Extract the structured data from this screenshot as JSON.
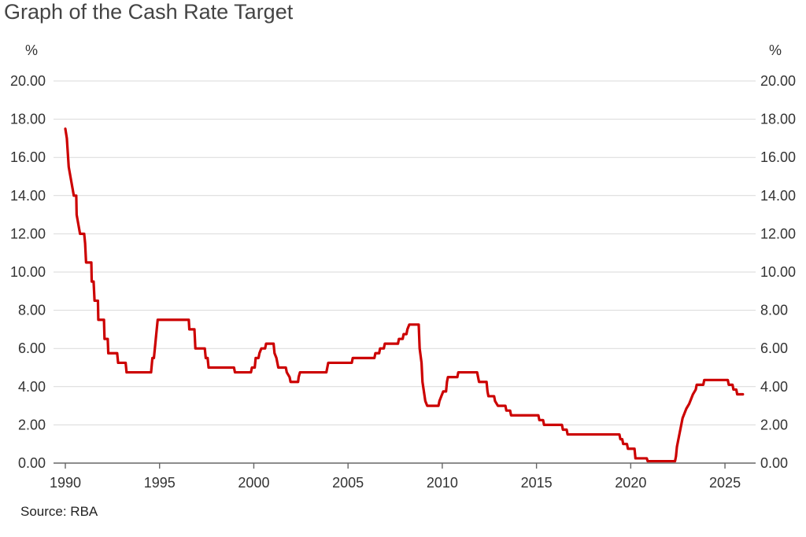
{
  "title": "Graph of the Cash Rate Target",
  "source": "Source: RBA",
  "chart_data": {
    "type": "line",
    "title": "Graph of the Cash Rate Target",
    "xlabel": "",
    "ylabel": "%",
    "y_unit_left": "%",
    "y_unit_right": "%",
    "xlim": [
      1990,
      2026
    ],
    "ylim": [
      0,
      20
    ],
    "x_ticks": [
      1990,
      1995,
      2000,
      2005,
      2010,
      2015,
      2020,
      2025
    ],
    "x_tick_labels": [
      "1990",
      "1995",
      "2000",
      "2005",
      "2010",
      "2015",
      "2020",
      "2025"
    ],
    "y_ticks": [
      0,
      2,
      4,
      6,
      8,
      10,
      12,
      14,
      16,
      18,
      20
    ],
    "y_tick_labels": [
      "0.00",
      "2.00",
      "4.00",
      "6.00",
      "8.00",
      "10.00",
      "12.00",
      "14.00",
      "16.00",
      "18.00",
      "20.00"
    ],
    "grid": "horizontal",
    "line_color": "#cc0000",
    "series": [
      {
        "values": [
          [
            1990.0,
            17.5
          ],
          [
            1990.08,
            17.0
          ],
          [
            1990.18,
            15.5
          ],
          [
            1990.45,
            14.0
          ],
          [
            1990.58,
            14.0
          ],
          [
            1990.6,
            13.0
          ],
          [
            1990.78,
            12.0
          ],
          [
            1991.0,
            12.0
          ],
          [
            1991.05,
            11.5
          ],
          [
            1991.1,
            10.5
          ],
          [
            1991.38,
            10.5
          ],
          [
            1991.4,
            9.5
          ],
          [
            1991.5,
            9.5
          ],
          [
            1991.55,
            8.5
          ],
          [
            1991.73,
            8.5
          ],
          [
            1991.75,
            7.5
          ],
          [
            1992.05,
            7.5
          ],
          [
            1992.08,
            6.5
          ],
          [
            1992.25,
            6.5
          ],
          [
            1992.28,
            5.75
          ],
          [
            1992.75,
            5.75
          ],
          [
            1992.8,
            5.25
          ],
          [
            1993.2,
            5.25
          ],
          [
            1993.25,
            4.75
          ],
          [
            1994.55,
            4.75
          ],
          [
            1994.62,
            5.5
          ],
          [
            1994.7,
            5.5
          ],
          [
            1994.8,
            6.5
          ],
          [
            1994.9,
            7.5
          ],
          [
            1996.55,
            7.5
          ],
          [
            1996.58,
            7.0
          ],
          [
            1996.85,
            7.0
          ],
          [
            1996.9,
            6.0
          ],
          [
            1997.4,
            6.0
          ],
          [
            1997.45,
            5.5
          ],
          [
            1997.55,
            5.5
          ],
          [
            1997.6,
            5.0
          ],
          [
            1998.95,
            5.0
          ],
          [
            1999.0,
            4.75
          ],
          [
            1999.85,
            4.75
          ],
          [
            1999.9,
            5.0
          ],
          [
            2000.05,
            5.0
          ],
          [
            2000.1,
            5.5
          ],
          [
            2000.25,
            5.5
          ],
          [
            2000.3,
            5.75
          ],
          [
            2000.4,
            6.0
          ],
          [
            2000.6,
            6.0
          ],
          [
            2000.65,
            6.25
          ],
          [
            2001.05,
            6.25
          ],
          [
            2001.1,
            5.75
          ],
          [
            2001.2,
            5.5
          ],
          [
            2001.3,
            5.0
          ],
          [
            2001.7,
            5.0
          ],
          [
            2001.75,
            4.75
          ],
          [
            2001.9,
            4.5
          ],
          [
            2001.95,
            4.25
          ],
          [
            2002.35,
            4.25
          ],
          [
            2002.38,
            4.5
          ],
          [
            2002.45,
            4.75
          ],
          [
            2003.85,
            4.75
          ],
          [
            2003.9,
            5.0
          ],
          [
            2003.95,
            5.25
          ],
          [
            2005.2,
            5.25
          ],
          [
            2005.25,
            5.5
          ],
          [
            2006.4,
            5.5
          ],
          [
            2006.45,
            5.75
          ],
          [
            2006.65,
            5.75
          ],
          [
            2006.7,
            6.0
          ],
          [
            2006.9,
            6.0
          ],
          [
            2006.95,
            6.25
          ],
          [
            2007.65,
            6.25
          ],
          [
            2007.7,
            6.5
          ],
          [
            2007.9,
            6.5
          ],
          [
            2007.95,
            6.75
          ],
          [
            2008.1,
            6.75
          ],
          [
            2008.15,
            7.0
          ],
          [
            2008.25,
            7.25
          ],
          [
            2008.75,
            7.25
          ],
          [
            2008.8,
            6.0
          ],
          [
            2008.9,
            5.25
          ],
          [
            2008.95,
            4.25
          ],
          [
            2009.1,
            3.25
          ],
          [
            2009.2,
            3.0
          ],
          [
            2009.8,
            3.0
          ],
          [
            2009.85,
            3.25
          ],
          [
            2009.95,
            3.5
          ],
          [
            2010.05,
            3.75
          ],
          [
            2010.2,
            3.75
          ],
          [
            2010.25,
            4.25
          ],
          [
            2010.3,
            4.5
          ],
          [
            2010.8,
            4.5
          ],
          [
            2010.85,
            4.75
          ],
          [
            2011.85,
            4.75
          ],
          [
            2011.9,
            4.5
          ],
          [
            2011.95,
            4.25
          ],
          [
            2012.35,
            4.25
          ],
          [
            2012.4,
            3.75
          ],
          [
            2012.45,
            3.5
          ],
          [
            2012.75,
            3.5
          ],
          [
            2012.8,
            3.25
          ],
          [
            2012.95,
            3.0
          ],
          [
            2013.35,
            3.0
          ],
          [
            2013.4,
            2.75
          ],
          [
            2013.6,
            2.75
          ],
          [
            2013.65,
            2.5
          ],
          [
            2015.1,
            2.5
          ],
          [
            2015.15,
            2.25
          ],
          [
            2015.35,
            2.25
          ],
          [
            2015.4,
            2.0
          ],
          [
            2016.35,
            2.0
          ],
          [
            2016.4,
            1.75
          ],
          [
            2016.6,
            1.75
          ],
          [
            2016.65,
            1.5
          ],
          [
            2019.4,
            1.5
          ],
          [
            2019.45,
            1.25
          ],
          [
            2019.55,
            1.25
          ],
          [
            2019.6,
            1.0
          ],
          [
            2019.8,
            1.0
          ],
          [
            2019.85,
            0.75
          ],
          [
            2020.2,
            0.75
          ],
          [
            2020.25,
            0.25
          ],
          [
            2020.85,
            0.25
          ],
          [
            2020.9,
            0.1
          ],
          [
            2022.35,
            0.1
          ],
          [
            2022.4,
            0.35
          ],
          [
            2022.45,
            0.85
          ],
          [
            2022.55,
            1.35
          ],
          [
            2022.65,
            1.85
          ],
          [
            2022.75,
            2.35
          ],
          [
            2022.85,
            2.6
          ],
          [
            2022.95,
            2.85
          ],
          [
            2023.1,
            3.1
          ],
          [
            2023.2,
            3.35
          ],
          [
            2023.3,
            3.6
          ],
          [
            2023.45,
            3.85
          ],
          [
            2023.5,
            4.1
          ],
          [
            2023.85,
            4.1
          ],
          [
            2023.9,
            4.35
          ],
          [
            2025.15,
            4.35
          ],
          [
            2025.2,
            4.1
          ],
          [
            2025.4,
            4.1
          ],
          [
            2025.45,
            3.85
          ],
          [
            2025.6,
            3.85
          ],
          [
            2025.65,
            3.6
          ],
          [
            2025.95,
            3.6
          ]
        ]
      }
    ]
  }
}
